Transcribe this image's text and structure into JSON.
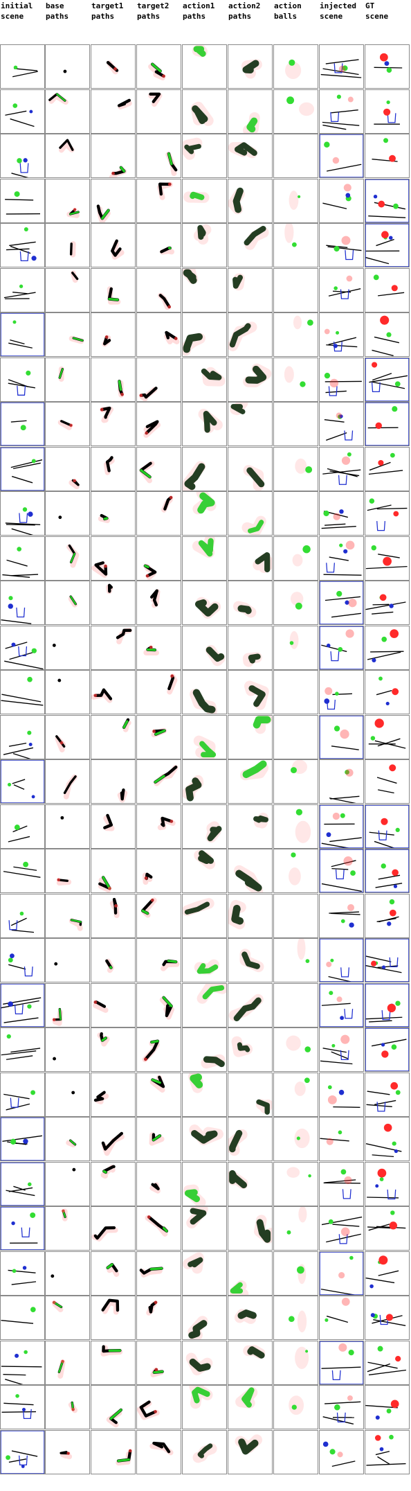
{
  "headers": [
    "initial\nscene",
    "base\npaths",
    "target1\npaths",
    "target2\npaths",
    "action1\npaths",
    "action2\npaths",
    "action\nballs",
    "injected\nscene",
    "GT\nscene"
  ],
  "colors": {
    "path_dark": "#000000",
    "path_green": "#22cc22",
    "heat_red": "#ff3b3b",
    "ball_red": "#ff2a2a",
    "ball_green": "#33dd33",
    "ball_blue": "#1f2fd0",
    "frame_blue": "#2233cc",
    "cell_border": "#8a8a8a"
  },
  "grid": {
    "rows": 32,
    "cols": 9
  }
}
